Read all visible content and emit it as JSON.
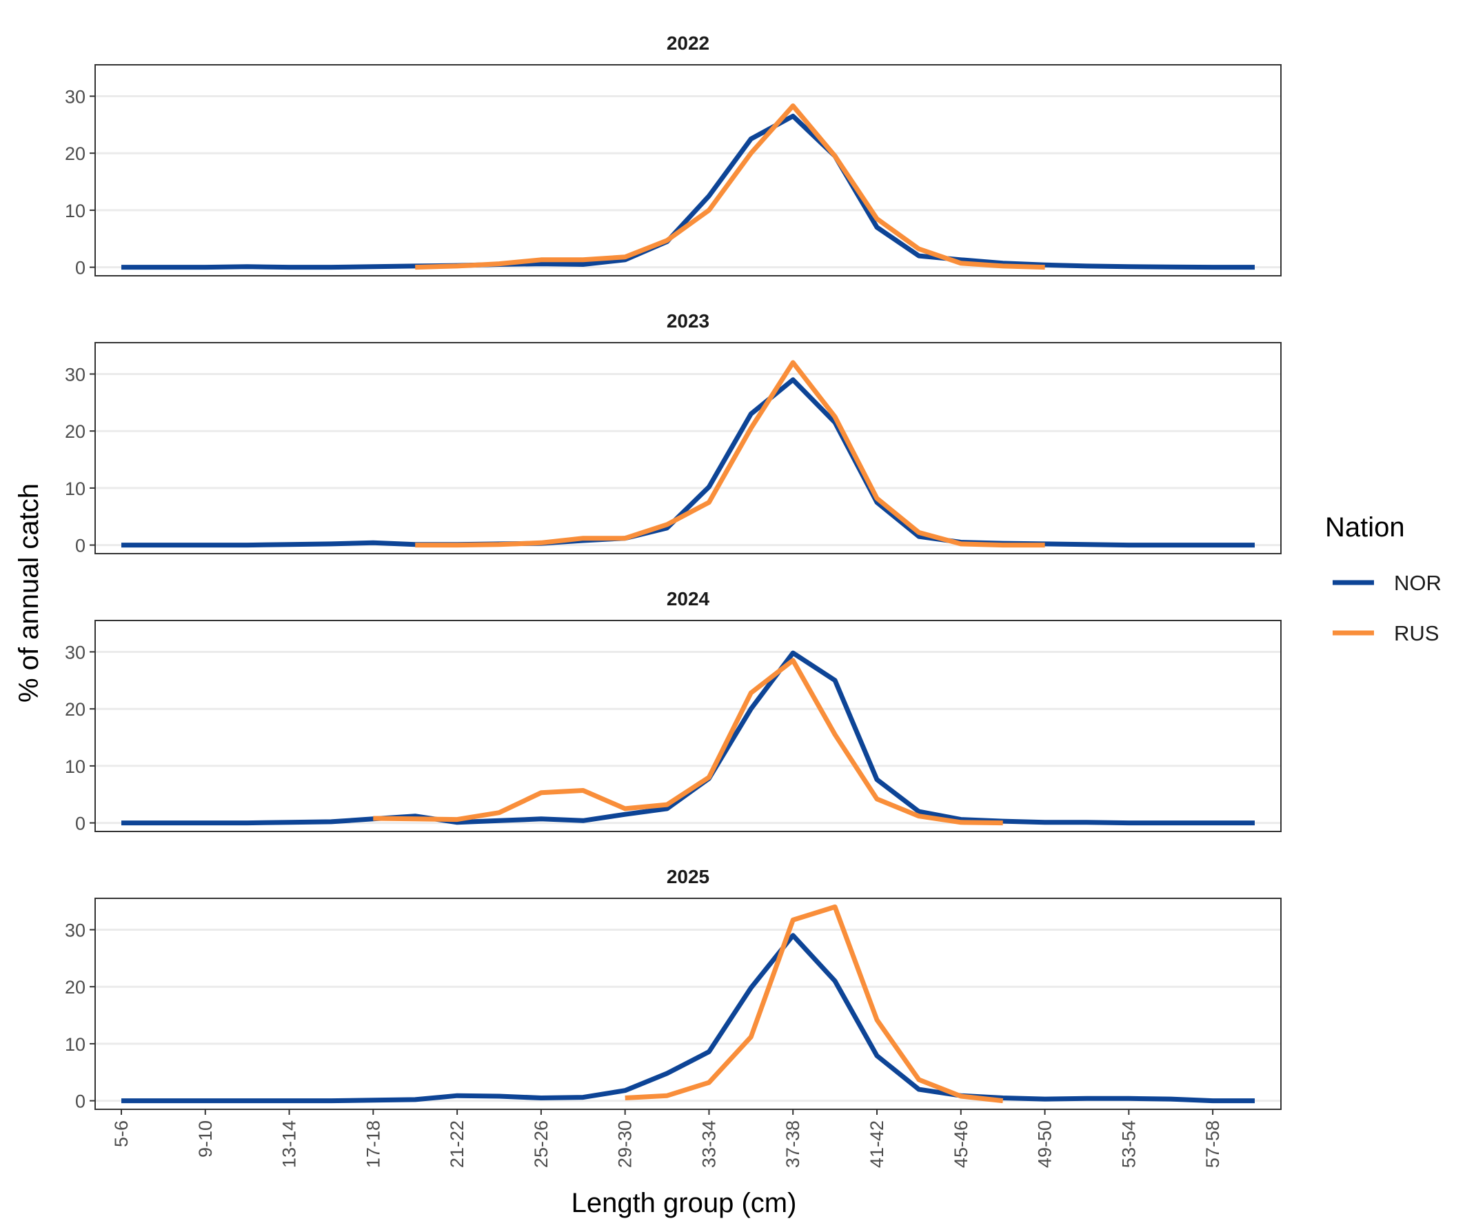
{
  "chart_data": {
    "type": "line",
    "xlabel": "Length group (cm)",
    "ylabel": "% of annual catch",
    "ylim": [
      -1.5,
      35.5
    ],
    "y_ticks": [
      0,
      10,
      20,
      30
    ],
    "grid": "horizontal major gridlines",
    "x_categories": [
      "5-6",
      "7-8",
      "9-10",
      "11-12",
      "13-14",
      "15-16",
      "17-18",
      "19-20",
      "21-22",
      "23-24",
      "25-26",
      "27-28",
      "29-30",
      "31-32",
      "33-34",
      "35-36",
      "37-38",
      "39-40",
      "41-42",
      "43-44",
      "45-46",
      "47-48",
      "49-50",
      "51-52",
      "53-54",
      "55-56",
      "57-58",
      "59-60"
    ],
    "x_tick_labels": [
      "5-6",
      "9-10",
      "13-14",
      "17-18",
      "21-22",
      "25-26",
      "29-30",
      "33-34",
      "37-38",
      "41-42",
      "45-46",
      "49-50",
      "53-54",
      "57-58"
    ],
    "legend": {
      "title": "Nation",
      "position": "right",
      "items": [
        {
          "name": "NOR",
          "color": "#0d4496"
        },
        {
          "name": "RUS",
          "color": "#f98e3a"
        }
      ]
    },
    "facets": [
      {
        "title": "2022",
        "series": [
          {
            "name": "NOR",
            "start": "5-6",
            "values": [
              0,
              0,
              0,
              0.1,
              0,
              0,
              0.1,
              0.2,
              0.3,
              0.5,
              0.6,
              0.5,
              1.3,
              4.5,
              12.5,
              22.5,
              26.5,
              19.5,
              7,
              2,
              1.3,
              0.7,
              0.4,
              0.2,
              0.1,
              0.05,
              0,
              0
            ]
          },
          {
            "name": "RUS",
            "start": "19-20",
            "values": [
              0,
              0.2,
              0.6,
              1.3,
              1.3,
              1.8,
              4.7,
              10,
              20,
              28.3,
              19.5,
              8.5,
              3.2,
              0.7,
              0.2,
              0
            ]
          }
        ]
      },
      {
        "title": "2023",
        "series": [
          {
            "name": "NOR",
            "start": "5-6",
            "values": [
              0,
              0,
              0,
              0,
              0.1,
              0.2,
              0.4,
              0.1,
              0.1,
              0.2,
              0.3,
              0.8,
              1.2,
              3,
              10.2,
              23,
              29,
              21.5,
              7.5,
              1.5,
              0.5,
              0.3,
              0.2,
              0.1,
              0,
              0,
              0,
              0
            ]
          },
          {
            "name": "RUS",
            "start": "19-20",
            "values": [
              0,
              0,
              0.1,
              0.4,
              1.2,
              1.2,
              3.6,
              7.5,
              20.5,
              32,
              22.5,
              8.2,
              2.2,
              0.2,
              0,
              0
            ]
          }
        ]
      },
      {
        "title": "2024",
        "series": [
          {
            "name": "NOR",
            "start": "5-6",
            "values": [
              0,
              0,
              0,
              0,
              0.1,
              0.2,
              0.7,
              1.2,
              0.1,
              0.4,
              0.7,
              0.4,
              1.5,
              2.5,
              7.8,
              20,
              29.8,
              25,
              7.6,
              2,
              0.6,
              0.3,
              0.1,
              0.1,
              0,
              0,
              0,
              0
            ]
          },
          {
            "name": "RUS",
            "start": "17-18",
            "values": [
              0.8,
              0.7,
              0.6,
              1.8,
              5.3,
              5.7,
              2.5,
              3.2,
              8,
              22.8,
              28.5,
              15.5,
              4.2,
              1.2,
              0.1,
              0
            ]
          }
        ]
      },
      {
        "title": "2025",
        "series": [
          {
            "name": "NOR",
            "start": "5-6",
            "values": [
              0,
              0,
              0,
              0,
              0,
              0,
              0.1,
              0.2,
              0.9,
              0.8,
              0.5,
              0.6,
              1.8,
              4.8,
              8.6,
              19.8,
              29,
              21,
              7.9,
              2,
              0.9,
              0.5,
              0.3,
              0.4,
              0.4,
              0.3,
              0,
              0
            ]
          },
          {
            "name": "RUS",
            "start": "29-30",
            "values": [
              0.5,
              0.9,
              3.2,
              11.2,
              31.7,
              34,
              14.2,
              3.7,
              0.8,
              0
            ]
          }
        ]
      }
    ]
  }
}
